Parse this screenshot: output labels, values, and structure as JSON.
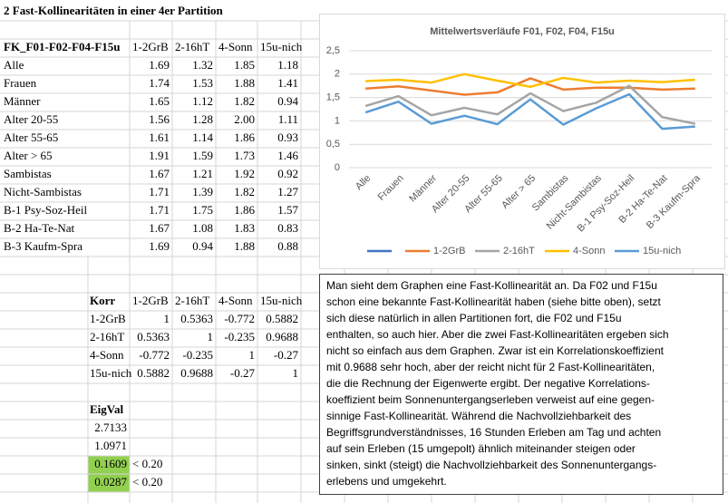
{
  "sheet": {
    "title": "2 Fast-Kollinearitäten in einer 4er Partition",
    "table": {
      "header": [
        "FK_F01-F02-F04-F15u",
        "1-2GrB",
        "2-16hT",
        "4-Sonn",
        "15u-nich"
      ],
      "rows": [
        [
          "Alle",
          "1.69",
          "1.32",
          "1.85",
          "1.18"
        ],
        [
          "Frauen",
          "1.74",
          "1.53",
          "1.88",
          "1.41"
        ],
        [
          "Männer",
          "1.65",
          "1.12",
          "1.82",
          "0.94"
        ],
        [
          "Alter 20-55",
          "1.56",
          "1.28",
          "2.00",
          "1.11"
        ],
        [
          "Alter 55-65",
          "1.61",
          "1.14",
          "1.86",
          "0.93"
        ],
        [
          "Alter > 65",
          "1.91",
          "1.59",
          "1.73",
          "1.46"
        ],
        [
          "Sambistas",
          "1.67",
          "1.21",
          "1.92",
          "0.92"
        ],
        [
          "Nicht-Sambistas",
          "1.71",
          "1.39",
          "1.82",
          "1.27"
        ],
        [
          "B-1 Psy-Soz-Heil",
          "1.71",
          "1.75",
          "1.86",
          "1.57"
        ],
        [
          "B-2 Ha-Te-Nat",
          "1.67",
          "1.08",
          "1.83",
          "0.83"
        ],
        [
          "B-3 Kaufm-Spra",
          "1.69",
          "0.94",
          "1.88",
          "0.88"
        ]
      ]
    },
    "corr": {
      "header": [
        "Korr",
        "1-2GrB",
        "2-16hT",
        "4-Sonn",
        "15u-nich"
      ],
      "rows": [
        [
          "1-2GrB",
          "1",
          "0.5363",
          "-0.772",
          "0.5882"
        ],
        [
          "2-16hT",
          "0.5363",
          "1",
          "-0.235",
          "0.9688"
        ],
        [
          "4-Sonn",
          "-0.772",
          "-0.235",
          "1",
          "-0.27"
        ],
        [
          "15u-nich",
          "0.5882",
          "0.9688",
          "-0.27",
          "1"
        ]
      ]
    },
    "eigval": {
      "title": "EigVal",
      "values": [
        "2.7133",
        "1.0971",
        "0.1609",
        "0.0287"
      ],
      "highlight": [
        false,
        false,
        true,
        true
      ],
      "highlight_color": "#92d050",
      "notes": [
        null,
        null,
        "< 0.20",
        "< 0.20"
      ]
    }
  },
  "chart_data": {
    "type": "line",
    "title": "Mittelwertsverläufe F01, F02, F04, F15u",
    "categories": [
      "Alle",
      "Frauen",
      "Männer",
      "Alter 20-55",
      "Alter 55-65",
      "Alter > 65",
      "Sambistas",
      "Nicht-Sambistas",
      "B-1 Psy-Soz-Heil",
      "B-2 Ha-Te-Nat",
      "B-3 Kaufm-Spra"
    ],
    "series": [
      {
        "name": "1-2GrB",
        "color": "#ed7d31",
        "values": [
          1.69,
          1.74,
          1.65,
          1.56,
          1.61,
          1.91,
          1.67,
          1.71,
          1.71,
          1.67,
          1.69
        ]
      },
      {
        "name": "2-16hT",
        "color": "#a5a5a5",
        "values": [
          1.32,
          1.53,
          1.12,
          1.28,
          1.14,
          1.59,
          1.21,
          1.39,
          1.75,
          1.08,
          0.94
        ]
      },
      {
        "name": "4-Sonn",
        "color": "#ffc000",
        "values": [
          1.85,
          1.88,
          1.82,
          2.0,
          1.86,
          1.73,
          1.92,
          1.82,
          1.86,
          1.83,
          1.88
        ]
      },
      {
        "name": "15u-nich",
        "color": "#5b9bd5",
        "values": [
          1.18,
          1.41,
          0.94,
          1.11,
          0.93,
          1.46,
          0.92,
          1.27,
          1.57,
          0.83,
          0.88
        ]
      }
    ],
    "ylim": [
      0,
      2.5
    ],
    "yticks": [
      0,
      {
        "value": 0.5,
        "label": "0,5"
      },
      1,
      {
        "value": 1.5,
        "label": "1,5"
      },
      2,
      {
        "value": 2.5,
        "label": "2,5"
      }
    ],
    "grid": true,
    "legend": "bottom"
  },
  "textbox": {
    "lines": [
      "Man sieht dem Graphen eine Fast-Kollinearität an. Da F02 und F15u",
      "schon eine bekannte Fast-Kollinearität haben (siehe bitte oben), setzt",
      "sich diese natürlich in allen Partitionen fort, die F02 und F15u",
      "enthalten, so auch hier. Aber die zwei Fast-Kollinearitäten ergeben sich",
      "nicht so einfach aus dem Graphen. Zwar ist ein Korrelationskoeffizient",
      "mit 0.9688 sehr hoch, aber der reicht nicht für 2 Fast-Kollinearitäten,",
      "die die Rechnung der Eigenwerte ergibt. Der negative Korrelations-",
      "koeffizient beim Sonnenuntergangserleben verweist auf eine gegen-",
      "sinnige Fast-Kollinearität. Während die Nachvollziehbarkeit des",
      "Begriffsgrundverständnisses, 16 Stunden Erleben am Tag und achten",
      "auf sein Erleben (15 umgepolt) ähnlich miteinander steigen oder",
      "sinken, sinkt (steigt) die Nachvollziehbarkeit des Sonnenuntergangs-",
      "erlebens und umgekehrt."
    ]
  }
}
